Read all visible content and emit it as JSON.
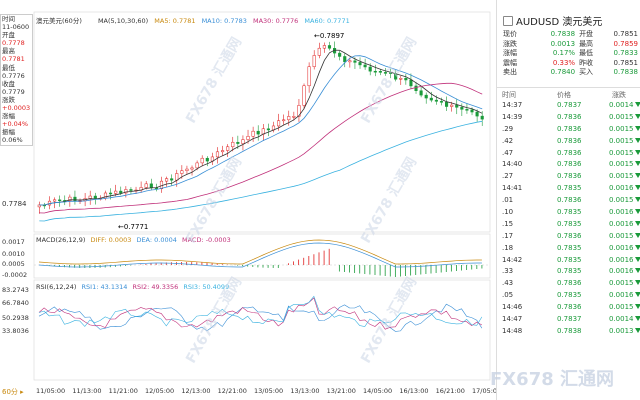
{
  "instrument": {
    "name": "澳元美元",
    "period": "60分",
    "code": "AUDUSD"
  },
  "ma_legend": {
    "label": "MA(5,10,30,60)",
    "ma5": "MA5: 0.7781",
    "ma10": "MA10: 0.7783",
    "ma30": "MA30: 0.7776",
    "ma60": "MA60: 0.7771",
    "colors": {
      "ma5": "#333333",
      "ma10": "#3a8fd6",
      "ma30": "#c0307a",
      "ma60": "#3ab2e0"
    }
  },
  "info_box": [
    "时间",
    "11-0600",
    "开盘",
    "0.7778",
    "最高",
    "0.7781",
    "最低",
    "0.7776",
    "收盘",
    "0.7779",
    "涨跌",
    "+0.0003",
    "涨幅",
    "+0.04%",
    "振幅",
    "0.06%"
  ],
  "price_axis": {
    "label": "0.7784"
  },
  "annotations": {
    "high": "0.7897",
    "low": "0.7771"
  },
  "macd_legend": {
    "label": "MACD(26,12,9)",
    "diff": "DIFF: 0.0003",
    "dea": "DEA: 0.0004",
    "macd": "MACD: -0.0003"
  },
  "macd_axis": [
    "0.0017",
    "0.0010",
    "0.0005",
    "-0.0002"
  ],
  "rsi_legend": {
    "label": "RSI(6,12,24)",
    "rsi1": "RSI1: 43.1314",
    "rsi2": "RSI2: 49.3356",
    "rsi3": "RSI3: 50.4099"
  },
  "rsi_axis": [
    "83.2743",
    "66.7840",
    "50.2938",
    "33.8036"
  ],
  "x_axis": [
    "11/05:00",
    "11/13:00",
    "11/21:00",
    "12/05:00",
    "12/13:00",
    "12/21:00",
    "13/05:00",
    "13/13:00",
    "13/21:00",
    "14/05:00",
    "16/13:00",
    "16/21:00",
    "17/05:00"
  ],
  "period_button": "60分 ▸",
  "side": {
    "title": "AUDUSD 澳元美元",
    "quote": [
      {
        "l1": "现价",
        "v1": "0.7838",
        "c1": "grn",
        "l2": "开盘",
        "v2": "0.7851",
        "c2": ""
      },
      {
        "l1": "涨跌",
        "v1": "0.0013",
        "c1": "grn",
        "l2": "最高",
        "v2": "0.7859",
        "c2": "red"
      },
      {
        "l1": "涨幅",
        "v1": "0.17%",
        "c1": "grn",
        "l2": "最低",
        "v2": "0.7833",
        "c2": "grn"
      },
      {
        "l1": "震幅",
        "v1": "0.33%",
        "c1": "red",
        "l2": "昨收",
        "v2": "0.7851",
        "c2": ""
      },
      {
        "l1": "卖出",
        "v1": "0.7840",
        "c1": "grn",
        "l2": "买入",
        "v2": "0.7838",
        "c2": "grn"
      }
    ],
    "trade_header": {
      "time": "时间",
      "price": "价格",
      "change": "涨跌"
    },
    "trades": [
      {
        "t": "14:37",
        "p": "0.7837",
        "c": "0.0014"
      },
      {
        "t": "14:39",
        "p": "0.7836",
        "c": "0.0015"
      },
      {
        "t": ".29",
        "p": "0.7836",
        "c": "0.0015"
      },
      {
        "t": ".42",
        "p": "0.7836",
        "c": "0.0015"
      },
      {
        "t": ".47",
        "p": "0.7836",
        "c": "0.0015"
      },
      {
        "t": "14:40",
        "p": "0.7836",
        "c": "0.0015"
      },
      {
        "t": ".27",
        "p": "0.7836",
        "c": "0.0015"
      },
      {
        "t": "14:41",
        "p": "0.7835",
        "c": "0.0016"
      },
      {
        "t": ".01",
        "p": "0.7836",
        "c": "0.0015"
      },
      {
        "t": ".10",
        "p": "0.7835",
        "c": "0.0016"
      },
      {
        "t": ".15",
        "p": "0.7835",
        "c": "0.0016"
      },
      {
        "t": ".17",
        "p": "0.7836",
        "c": "0.0015"
      },
      {
        "t": ".18",
        "p": "0.7835",
        "c": "0.0016"
      },
      {
        "t": "14:42",
        "p": "0.7835",
        "c": "0.0016"
      },
      {
        "t": ".33",
        "p": "0.7835",
        "c": "0.0016"
      },
      {
        "t": ".43",
        "p": "0.7836",
        "c": "0.0015"
      },
      {
        "t": ".05",
        "p": "0.7835",
        "c": "0.0016"
      },
      {
        "t": "14:46",
        "p": "0.7836",
        "c": "0.0015"
      },
      {
        "t": "14:47",
        "p": "0.7837",
        "c": "0.0014"
      },
      {
        "t": "14:48",
        "p": "0.7838",
        "c": "0.0013"
      }
    ]
  },
  "watermark": "FX678 汇通网",
  "brand": "FX678 汇通网"
}
